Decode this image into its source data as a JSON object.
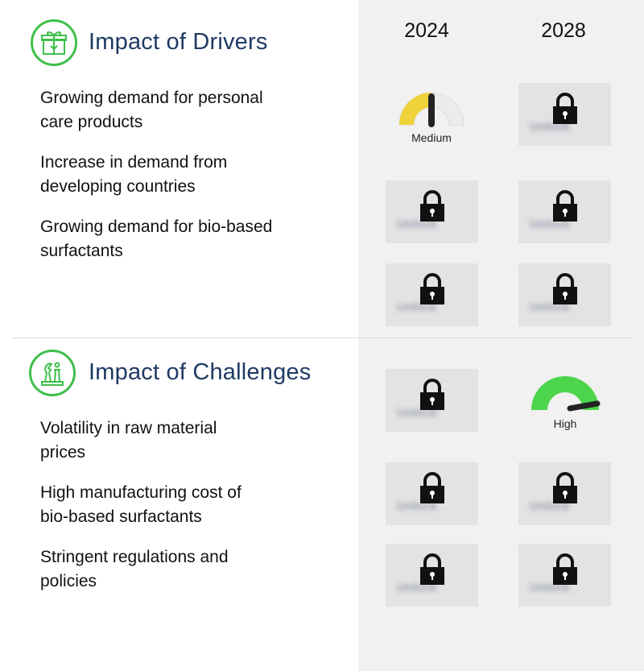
{
  "years": [
    "2024",
    "2028"
  ],
  "drivers": {
    "title": "Impact of Drivers",
    "icon": "drivers-gift-icon",
    "items": [
      {
        "line1": "Growing demand for personal",
        "line2": "care products"
      },
      {
        "line1": "Increase in demand from",
        "line2": "developing countries"
      },
      {
        "line1": "Growing demand for bio-based",
        "line2": "surfactants"
      }
    ],
    "gauge_2024": {
      "label": "Medium",
      "level": "medium",
      "color": "#f0d23a"
    }
  },
  "challenges": {
    "title": "Impact of Challenges",
    "icon": "challenges-chess-icon",
    "items": [
      {
        "line1": "Volatility in raw material",
        "line2": "prices"
      },
      {
        "line1": "High manufacturing cost of",
        "line2": "bio-based surfactants"
      },
      {
        "line1": "Stringent regulations and",
        "line2": "policies"
      }
    ],
    "gauge_2028": {
      "label": "High",
      "level": "high",
      "color": "#4cd44c"
    }
  },
  "locked_placeholder": "Unlock"
}
